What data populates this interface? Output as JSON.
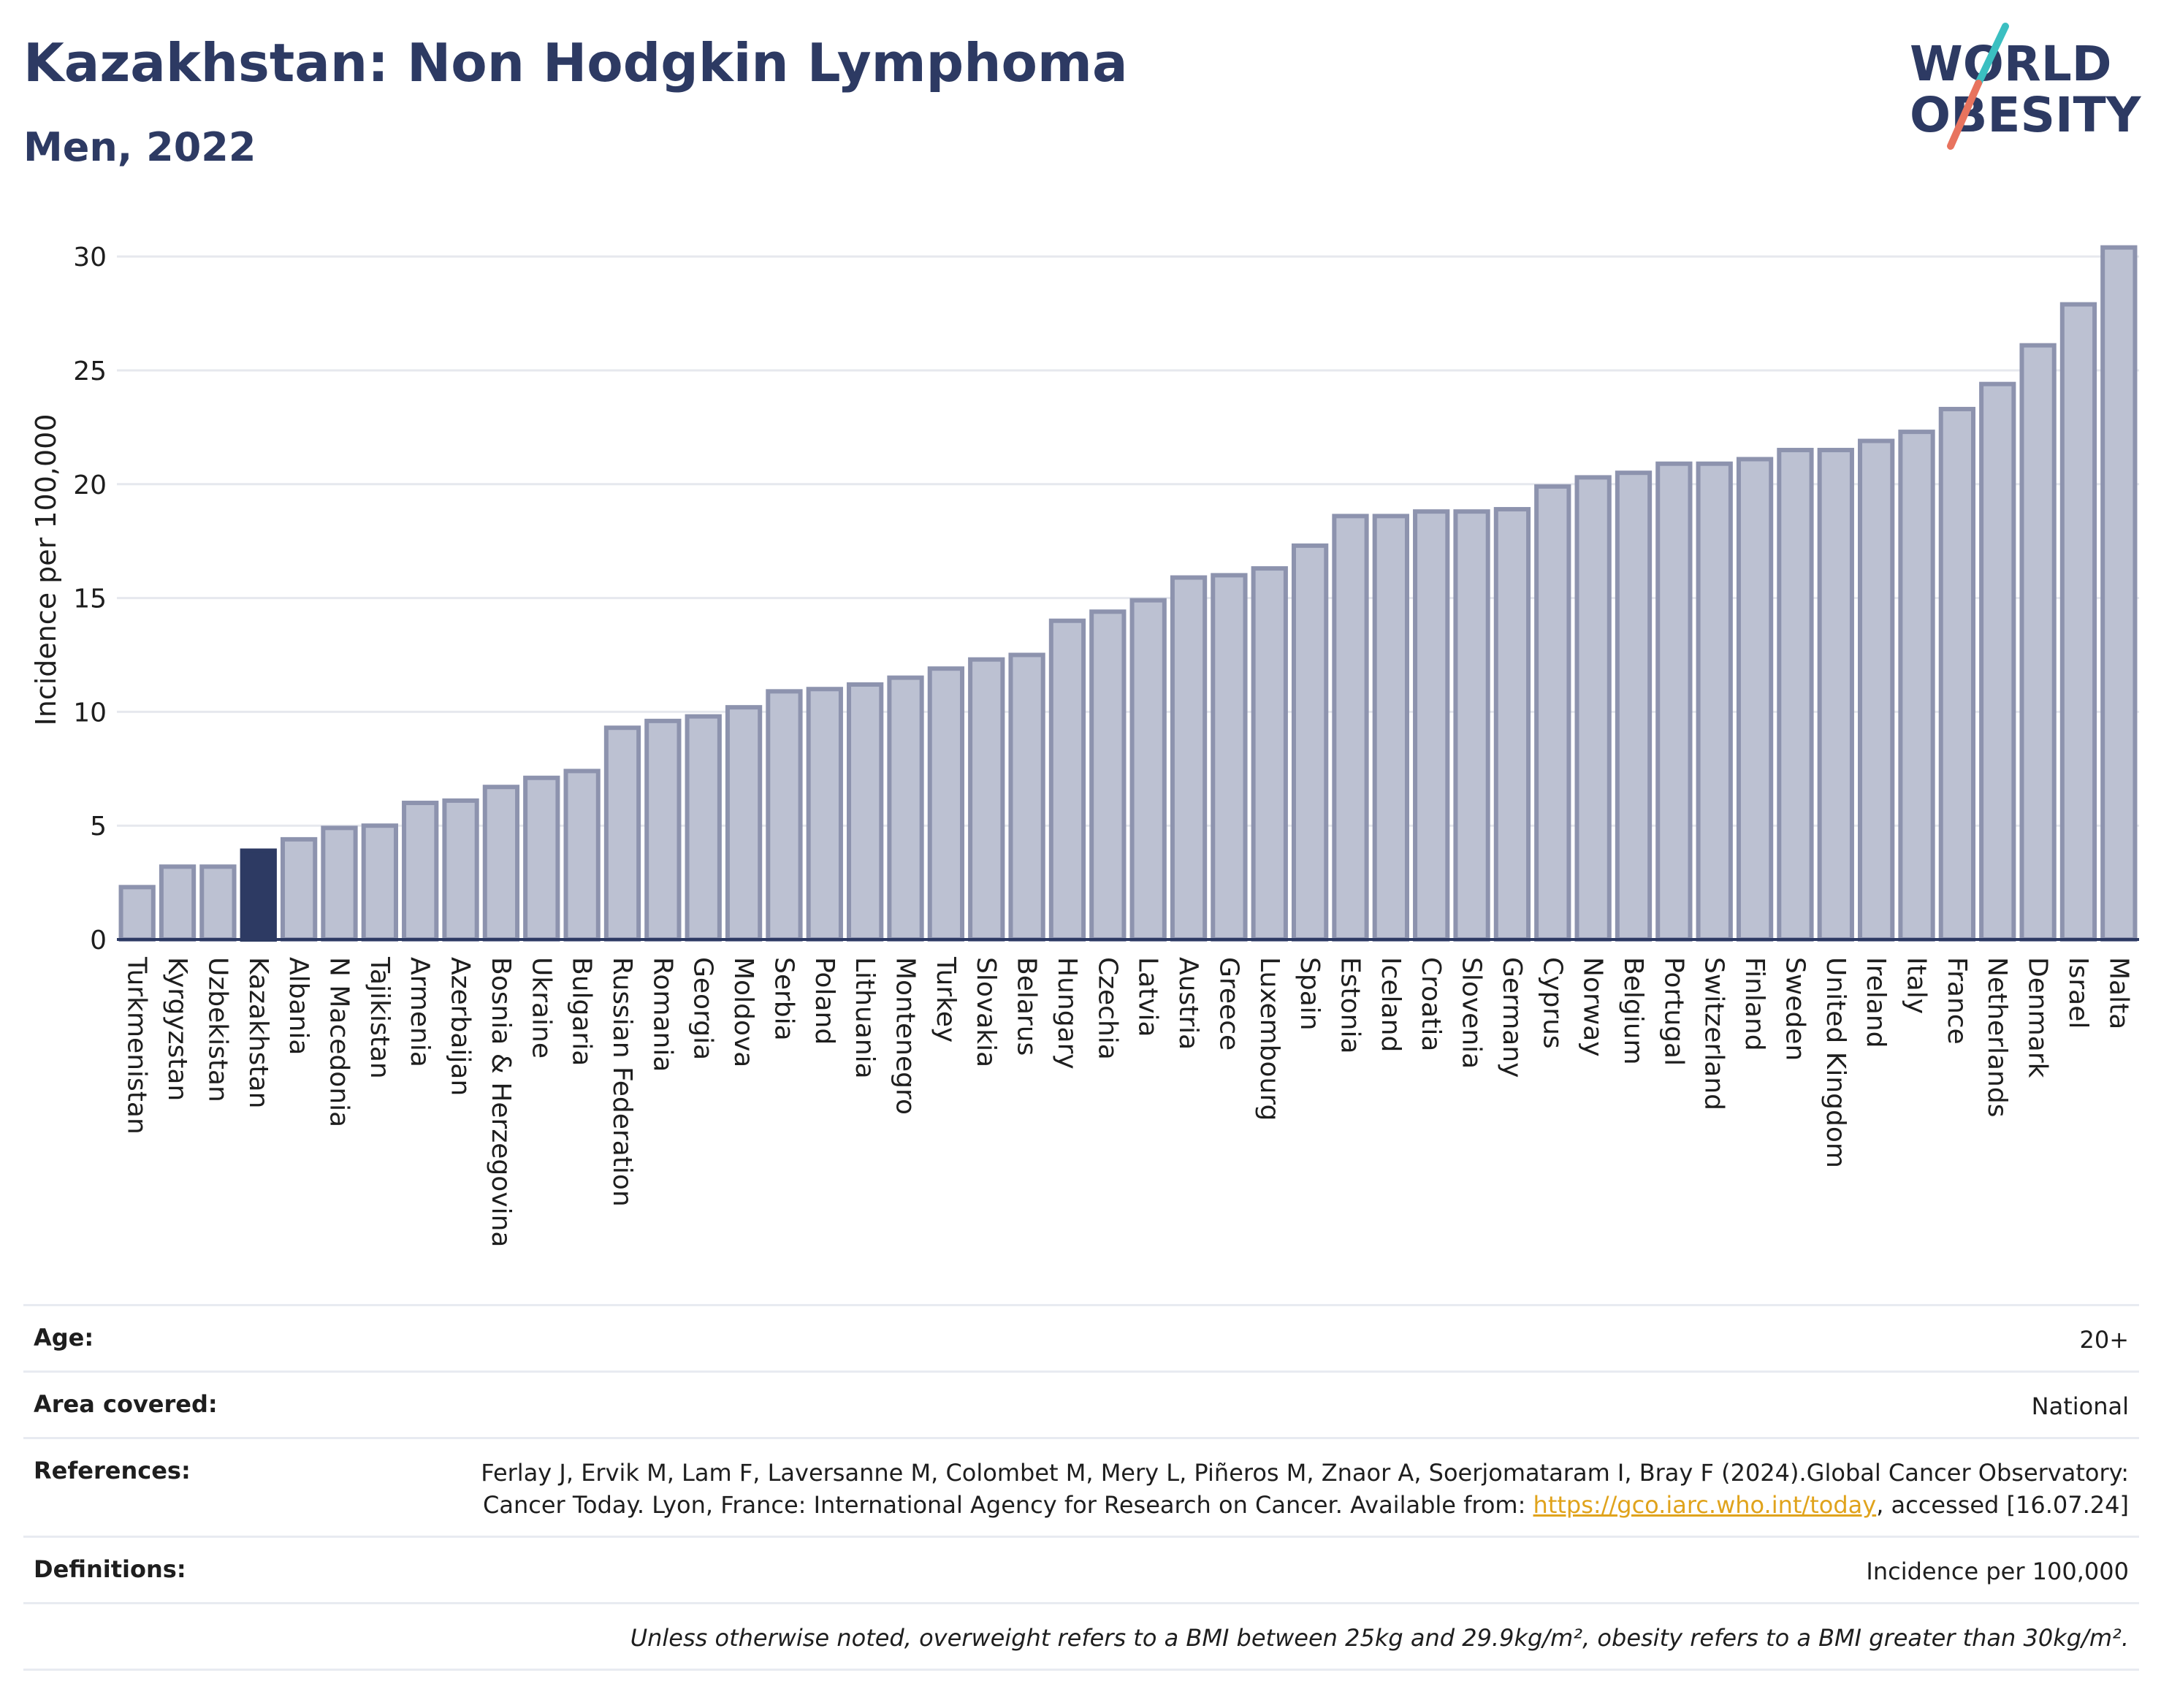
{
  "header": {
    "title": "Kazakhstan: Non Hodgkin Lymphoma",
    "subtitle": "Men, 2022"
  },
  "logo": {
    "line1": "WORLD",
    "line2": "OBESITY"
  },
  "colors": {
    "bar_fill": "#bcc1d2",
    "bar_stroke": "#8d93ae",
    "highlight_fill": "#2d3a63",
    "title": "#2d3a63",
    "link": "#e0a31c",
    "logo_teal": "#3bbfc1",
    "logo_coral": "#e8735e"
  },
  "chart_data": {
    "type": "bar",
    "ylabel": "Incidence per 100,000",
    "ylim": [
      0,
      31
    ],
    "yticks": [
      0,
      5,
      10,
      15,
      20,
      25,
      30
    ],
    "grid": true,
    "highlight": "Kazakhstan",
    "categories": [
      "Turkmenistan",
      "Kyrgyzstan",
      "Uzbekistan",
      "Kazakhstan",
      "Albania",
      "N Macedonia",
      "Tajikistan",
      "Armenia",
      "Azerbaijan",
      "Bosnia & Herzegovina",
      "Ukraine",
      "Bulgaria",
      "Russian Federation",
      "Romania",
      "Georgia",
      "Moldova",
      "Serbia",
      "Poland",
      "Lithuania",
      "Montenegro",
      "Turkey",
      "Slovakia",
      "Belarus",
      "Hungary",
      "Czechia",
      "Latvia",
      "Austria",
      "Greece",
      "Luxembourg",
      "Spain",
      "Estonia",
      "Iceland",
      "Croatia",
      "Slovenia",
      "Germany",
      "Cyprus",
      "Norway",
      "Belgium",
      "Portugal",
      "Switzerland",
      "Finland",
      "Sweden",
      "United Kingdom",
      "Ireland",
      "Italy",
      "France",
      "Netherlands",
      "Denmark",
      "Israel",
      "Malta"
    ],
    "values": [
      2.3,
      3.2,
      3.2,
      3.9,
      4.4,
      4.9,
      5.0,
      6.0,
      6.1,
      6.7,
      7.1,
      7.4,
      9.3,
      9.6,
      9.8,
      10.2,
      10.9,
      11.0,
      11.2,
      11.5,
      11.9,
      12.3,
      12.5,
      14.0,
      14.4,
      14.9,
      15.9,
      16.0,
      16.3,
      17.3,
      18.6,
      18.6,
      18.8,
      18.8,
      18.9,
      19.9,
      20.3,
      20.5,
      20.9,
      20.9,
      21.1,
      21.5,
      21.5,
      21.9,
      22.3,
      23.3,
      24.4,
      26.1,
      27.9,
      30.4
    ]
  },
  "info": {
    "age_label": "Age:",
    "age_value": "20+",
    "area_label": "Area covered:",
    "area_value": "National",
    "references_label": "References:",
    "references_text_1": "Ferlay J, Ervik M, Lam F, Laversanne M, Colombet M, Mery L, Piñeros M, Znaor A, Soerjomataram I, Bray F (2024).Global Cancer Observatory: Cancer Today. Lyon, France: International Agency for Research on Cancer. Available from: ",
    "references_link": "https://gco.iarc.who.int/today",
    "references_text_2": ", accessed [16.07.24]",
    "definitions_label": "Definitions:",
    "definitions_value": "Incidence per 100,000",
    "note": "Unless otherwise noted, overweight refers to a BMI between 25kg and 29.9kg/m², obesity refers to a BMI greater than 30kg/m²."
  }
}
